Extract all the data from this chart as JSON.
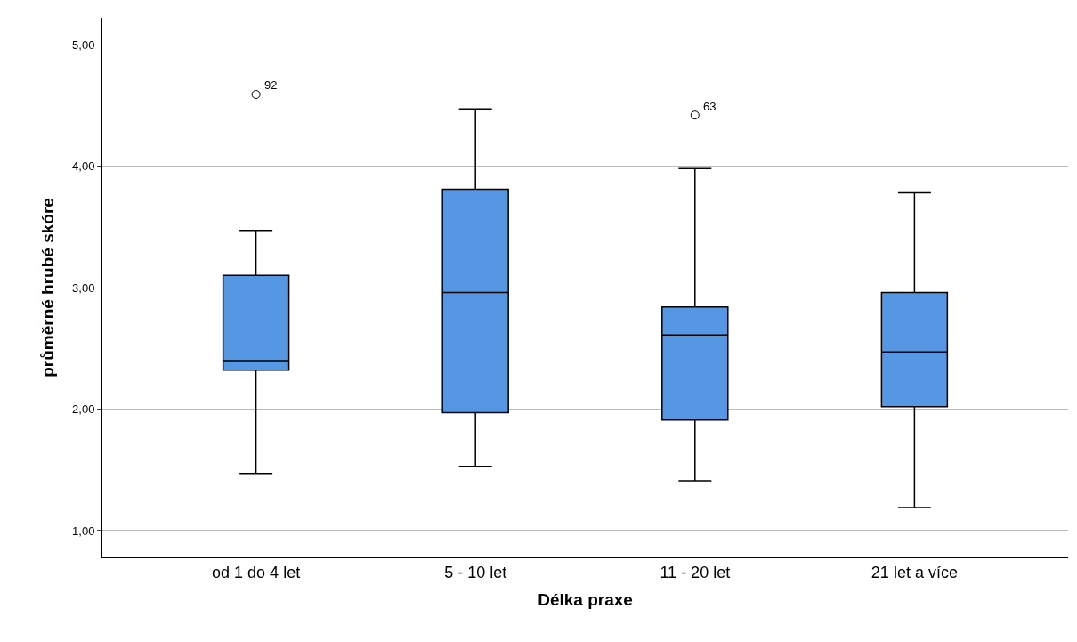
{
  "chart_data": {
    "type": "box",
    "xlabel": "Délka praxe",
    "ylabel": "průměrné hrubé skóre",
    "categories": [
      "od 1 do 4 let",
      "5 - 10 let",
      "11 - 20 let",
      "21 let a více"
    ],
    "boxes": [
      {
        "low": 1.47,
        "q1": 2.32,
        "median": 2.4,
        "q3": 3.1,
        "high": 3.47,
        "outliers": [
          4.59
        ]
      },
      {
        "low": 1.53,
        "q1": 1.97,
        "median": 2.96,
        "q3": 3.81,
        "high": 4.47
      },
      {
        "low": 1.41,
        "q1": 1.91,
        "median": 2.61,
        "q3": 2.84,
        "high": 3.98,
        "outliers": [
          4.42
        ]
      },
      {
        "low": 1.19,
        "q1": 2.02,
        "median": 2.47,
        "q3": 2.96,
        "high": 3.78
      }
    ],
    "color": "#5597e3",
    "ylim": [
      0.78,
      5.22
    ],
    "yticks": [
      {
        "value": 1,
        "label": "1,00"
      },
      {
        "value": 2,
        "label": "2,00"
      },
      {
        "value": 3,
        "label": "3,00"
      },
      {
        "value": 4,
        "label": "4,00"
      },
      {
        "value": 5,
        "label": "5,00"
      }
    ],
    "grid": "y",
    "annotations": [
      "92",
      "63"
    ]
  }
}
